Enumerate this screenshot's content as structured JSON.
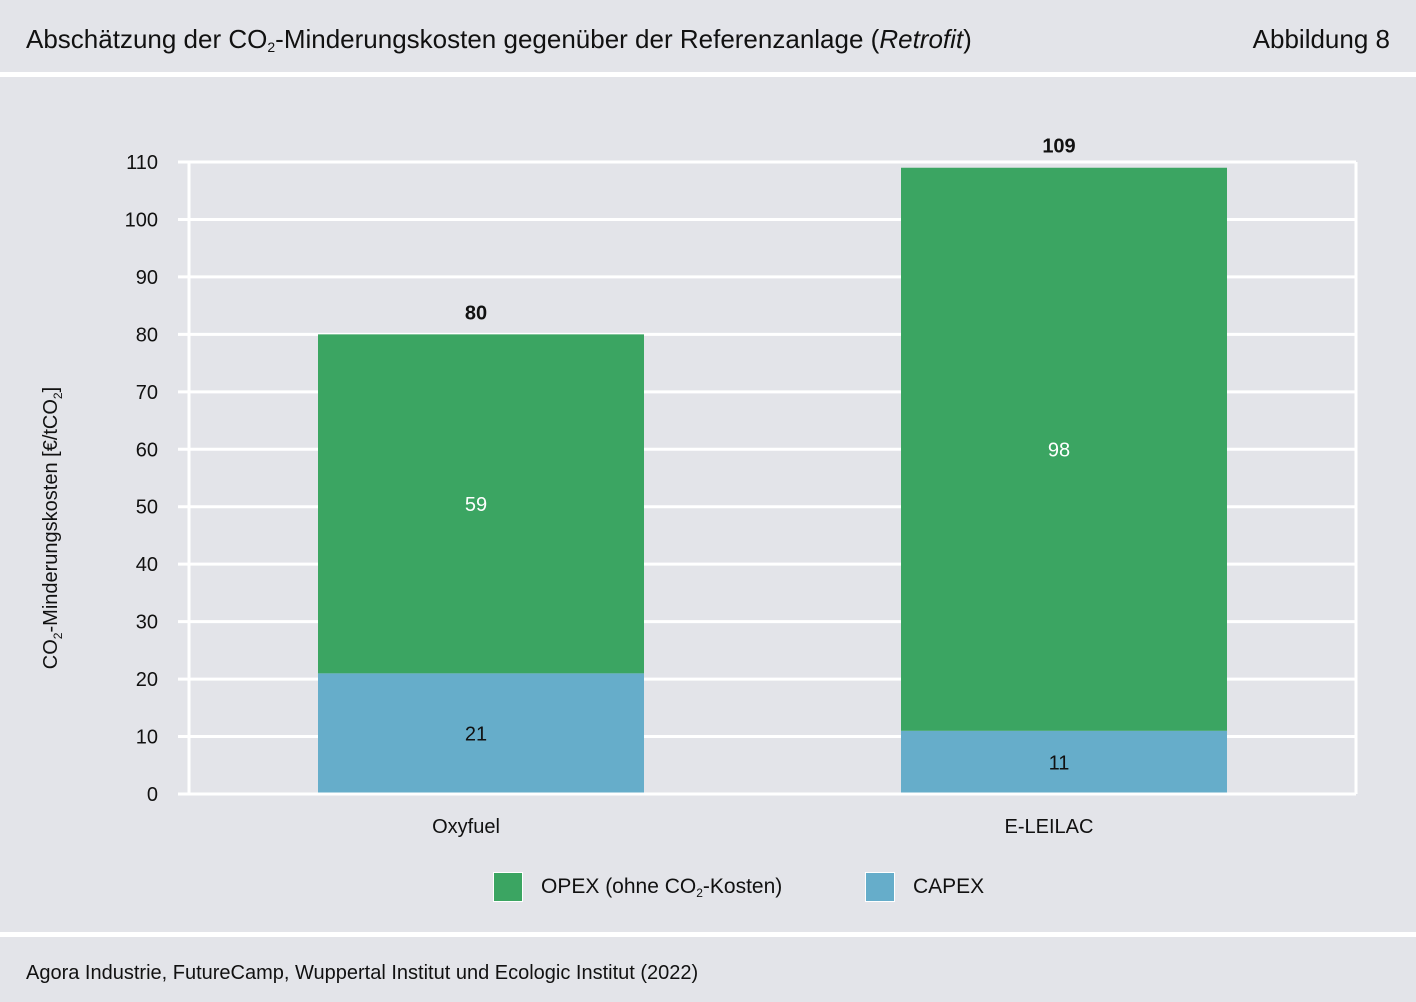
{
  "header": {
    "title_part1": "Abschätzung der CO",
    "title_sub": "2",
    "title_part2": "-Minderungskosten gegenüber der Referenzanlage (",
    "title_italic": "Retrofit",
    "title_part3": ")",
    "figure_label": "Abbildung 8"
  },
  "footer": {
    "source": "Agora Industrie, FutureCamp, Wuppertal Institut und Ecologic Institut (2022)"
  },
  "colors": {
    "opex": "#3ba562",
    "capex": "#66adca",
    "grid": "#ffffff",
    "background": "#e3e4e9"
  },
  "legend": {
    "opex_part1": "OPEX (ohne CO",
    "opex_sub": "2",
    "opex_part2": "-Kosten)",
    "capex": "CAPEX"
  },
  "chart_data": {
    "type": "bar",
    "stacked": true,
    "categories": [
      "Oxyfuel",
      "E-LEILAC"
    ],
    "series": [
      {
        "name": "CAPEX",
        "values": [
          21,
          11
        ],
        "color": "#66adca"
      },
      {
        "name": "OPEX (ohne CO2-Kosten)",
        "values": [
          59,
          98
        ],
        "color": "#3ba562"
      }
    ],
    "totals": [
      80,
      109
    ],
    "ylabel_part1": "CO",
    "ylabel_sub": "2",
    "ylabel_part2": "-Minderungskosten [€/tCO",
    "ylabel_sub2": "2",
    "ylabel_part3": "]",
    "ylim": [
      0,
      110
    ],
    "yticks": [
      0,
      10,
      20,
      30,
      40,
      50,
      60,
      70,
      80,
      90,
      100,
      110
    ],
    "grid": true,
    "legend_position": "bottom"
  }
}
